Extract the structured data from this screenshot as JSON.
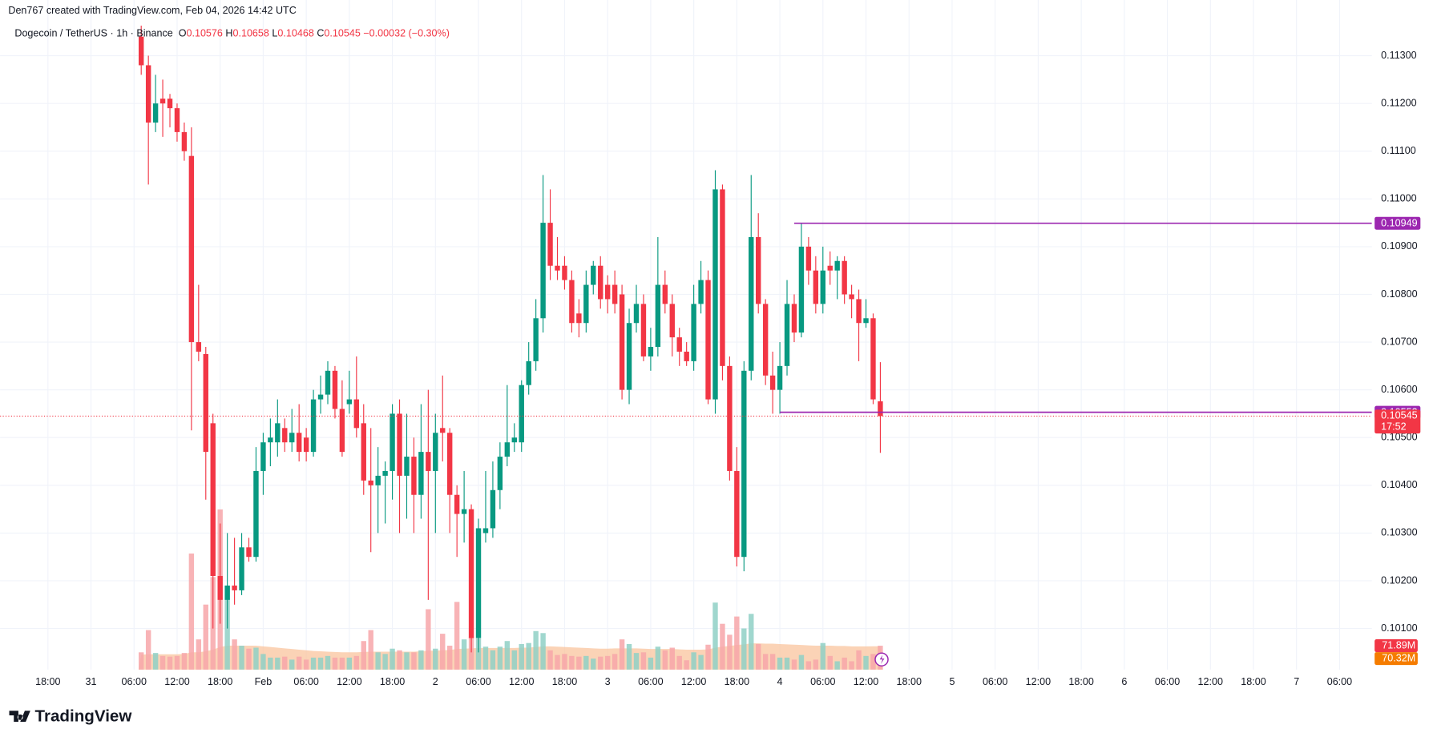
{
  "credit": "Den767 created with TradingView.com, Feb 04, 2026 14:42 UTC",
  "brand": "TradingView",
  "chart_data": {
    "type": "candlestick",
    "title": "Dogecoin / TetherUS · 1h · Binance",
    "ohlc_letters": [
      "O",
      "H",
      "L",
      "C"
    ],
    "change": "−0.00032 (−0.30%)",
    "countdown": "17:52",
    "up_color": "#089981",
    "down_color": "#f23645",
    "volume_up_color": "#8fd0c6",
    "volume_down_color": "#f7a6a9",
    "volume_ma_color": "#f9c49d",
    "level_color": "#9c27b0",
    "grid": true,
    "xlim": [
      -19.67,
      171.5
    ],
    "ylim": [
      0.10014,
      0.11363
    ],
    "yticks": [
      {
        "value": 0.101,
        "label": "0.10100"
      },
      {
        "value": 0.102,
        "label": "0.10200"
      },
      {
        "value": 0.103,
        "label": "0.10300"
      },
      {
        "value": 0.104,
        "label": "0.10400"
      },
      {
        "value": 0.105,
        "label": "0.10500"
      },
      {
        "value": 0.106,
        "label": "0.10600"
      },
      {
        "value": 0.107,
        "label": "0.10700"
      },
      {
        "value": 0.108,
        "label": "0.10800"
      },
      {
        "value": 0.109,
        "label": "0.10900"
      },
      {
        "value": 0.11,
        "label": "0.11000"
      },
      {
        "value": 0.111,
        "label": "0.11100"
      },
      {
        "value": 0.112,
        "label": "0.11200"
      },
      {
        "value": 0.113,
        "label": "0.11300"
      }
    ],
    "xticks": [
      {
        "value": -13,
        "label": "18:00"
      },
      {
        "value": -7,
        "label": "31"
      },
      {
        "value": -1,
        "label": "06:00"
      },
      {
        "value": 5,
        "label": "12:00"
      },
      {
        "value": 11,
        "label": "18:00"
      },
      {
        "value": 17,
        "label": "Feb"
      },
      {
        "value": 23,
        "label": "06:00"
      },
      {
        "value": 29,
        "label": "12:00"
      },
      {
        "value": 35,
        "label": "18:00"
      },
      {
        "value": 41,
        "label": "2"
      },
      {
        "value": 47,
        "label": "06:00"
      },
      {
        "value": 53,
        "label": "12:00"
      },
      {
        "value": 59,
        "label": "18:00"
      },
      {
        "value": 65,
        "label": "3"
      },
      {
        "value": 71,
        "label": "06:00"
      },
      {
        "value": 77,
        "label": "12:00"
      },
      {
        "value": 83,
        "label": "18:00"
      },
      {
        "value": 89,
        "label": "4"
      },
      {
        "value": 95,
        "label": "06:00"
      },
      {
        "value": 101,
        "label": "12:00"
      },
      {
        "value": 107,
        "label": "18:00"
      },
      {
        "value": 113,
        "label": "5"
      },
      {
        "value": 119,
        "label": "06:00"
      },
      {
        "value": 125,
        "label": "12:00"
      },
      {
        "value": 131,
        "label": "18:00"
      },
      {
        "value": 137,
        "label": "6"
      },
      {
        "value": 143,
        "label": "06:00"
      },
      {
        "value": 149,
        "label": "12:00"
      },
      {
        "value": 155,
        "label": "18:00"
      },
      {
        "value": 161,
        "label": "7"
      },
      {
        "value": 167,
        "label": "06:00"
      }
    ],
    "open": [
      0.1134,
      0.1128,
      0.1116,
      0.1121,
      0.1121,
      0.1119,
      0.1114,
      0.1109,
      0.107,
      0.10675,
      0.1053,
      0.1021,
      0.1016,
      0.1019,
      0.1018,
      0.1027,
      0.1025,
      0.1043,
      0.1049,
      0.1049,
      0.1052,
      0.1049,
      0.1051,
      0.105,
      0.1047,
      0.1058,
      0.1059,
      0.1064,
      0.1056,
      0.1057,
      0.1058,
      0.1053,
      0.1041,
      0.104,
      0.1042,
      0.1043,
      0.1055,
      0.1042,
      0.1046,
      0.1038,
      0.1047,
      0.1043,
      0.1052,
      0.1051,
      0.1038,
      0.1034,
      0.1035,
      0.1008,
      0.103,
      0.1031,
      0.1039,
      0.1046,
      0.1049,
      0.1049,
      0.1061,
      0.1066,
      0.1075,
      0.1095,
      0.1086,
      0.1086,
      0.1083,
      0.1076,
      0.1074,
      0.1082,
      0.1086,
      0.1082,
      0.1082,
      0.108,
      0.106,
      0.1074,
      0.1078,
      0.1067,
      0.1069,
      0.1082,
      0.1078,
      0.1071,
      0.1068,
      0.1066,
      0.1078,
      0.1083,
      0.1058,
      0.1102,
      0.1065,
      0.1043,
      0.1025,
      0.1064,
      0.1092,
      0.1078,
      0.1063,
      0.106,
      0.1065,
      0.1078,
      0.1072,
      0.109,
      0.1085,
      0.1078,
      0.1086,
      0.1085,
      0.1087,
      0.108,
      0.1079,
      0.1074,
      0.1075,
      0.10576
    ],
    "high": [
      0.1137,
      0.113,
      0.1126,
      0.1125,
      0.1122,
      0.112,
      0.1116,
      0.1115,
      0.1082,
      0.1069,
      0.1055,
      0.1032,
      0.103,
      0.1029,
      0.103,
      0.1029,
      0.1048,
      0.1051,
      0.1054,
      0.1058,
      0.1054,
      0.1056,
      0.1057,
      0.1052,
      0.106,
      0.1063,
      0.1066,
      0.1065,
      0.1062,
      0.1064,
      0.1067,
      0.1057,
      0.1052,
      0.1048,
      0.1045,
      0.1057,
      0.1058,
      0.1055,
      0.105,
      0.1057,
      0.106,
      0.1055,
      0.1063,
      0.1052,
      0.104,
      0.1043,
      0.1036,
      0.1033,
      0.1043,
      0.1045,
      0.1049,
      0.1061,
      0.1053,
      0.1062,
      0.107,
      0.1079,
      0.1105,
      0.1102,
      0.1092,
      0.1088,
      0.1085,
      0.1079,
      0.1085,
      0.1087,
      0.1088,
      0.1084,
      0.1085,
      0.1082,
      0.1077,
      0.1082,
      0.108,
      0.1073,
      0.1092,
      0.1085,
      0.108,
      0.1073,
      0.107,
      0.1082,
      0.1087,
      0.1085,
      0.1106,
      0.1103,
      0.1067,
      0.1048,
      0.1066,
      0.1105,
      0.1097,
      0.1079,
      0.1068,
      0.107,
      0.1083,
      0.108,
      0.10949,
      0.1092,
      0.1088,
      0.109,
      0.1089,
      0.1088,
      0.1088,
      0.1082,
      0.1081,
      0.1079,
      0.1076,
      0.10658
    ],
    "low": [
      0.1126,
      0.1103,
      0.1114,
      0.1113,
      0.1115,
      0.1112,
      0.1108,
      0.10515,
      0.1066,
      0.1037,
      0.101,
      0.1011,
      0.101,
      0.1015,
      0.1017,
      0.1024,
      0.1024,
      0.1038,
      0.1044,
      0.1046,
      0.1047,
      0.1047,
      0.1045,
      0.1045,
      0.1046,
      0.1055,
      0.1057,
      0.1054,
      0.1046,
      0.1055,
      0.105,
      0.1038,
      0.1026,
      0.103,
      0.1032,
      0.1037,
      0.103,
      0.1033,
      0.103,
      0.1033,
      0.1016,
      0.103,
      0.1045,
      0.103,
      0.1025,
      0.1028,
      0.1005,
      0.1005,
      0.1028,
      0.1029,
      0.1035,
      0.1044,
      0.1047,
      0.1047,
      0.1059,
      0.1064,
      0.1072,
      0.1083,
      0.1083,
      0.1081,
      0.1072,
      0.1071,
      0.1072,
      0.108,
      0.1077,
      0.1076,
      0.1076,
      0.1058,
      0.1057,
      0.1072,
      0.1066,
      0.1064,
      0.1067,
      0.1076,
      0.1067,
      0.1065,
      0.1065,
      0.1064,
      0.1076,
      0.1057,
      0.1055,
      0.1062,
      0.1041,
      0.1023,
      0.1022,
      0.1062,
      0.1076,
      0.1061,
      0.1055,
      0.1055,
      0.1063,
      0.107,
      0.1071,
      0.1082,
      0.1076,
      0.1076,
      0.1082,
      0.1079,
      0.1078,
      0.1075,
      0.1066,
      0.1073,
      0.1057,
      0.10468
    ],
    "close": [
      0.1128,
      0.1116,
      0.112,
      0.112,
      0.1119,
      0.1114,
      0.111,
      0.107,
      0.1068,
      0.1047,
      0.1021,
      0.1016,
      0.1019,
      0.1018,
      0.1027,
      0.1025,
      0.1043,
      0.1049,
      0.105,
      0.1053,
      0.1049,
      0.1051,
      0.1047,
      0.1047,
      0.1058,
      0.1059,
      0.1064,
      0.1056,
      0.1047,
      0.1058,
      0.1052,
      0.1041,
      0.104,
      0.1042,
      0.1043,
      0.1055,
      0.1042,
      0.1046,
      0.1038,
      0.1047,
      0.1043,
      0.1051,
      0.1051,
      0.1038,
      0.1034,
      0.1035,
      0.1008,
      0.1031,
      0.1031,
      0.1039,
      0.1046,
      0.1049,
      0.105,
      0.1061,
      0.1066,
      0.1075,
      0.1095,
      0.1086,
      0.1085,
      0.1083,
      0.1074,
      0.1074,
      0.1082,
      0.1086,
      0.1079,
      0.1079,
      0.1078,
      0.106,
      0.1074,
      0.1078,
      0.1067,
      0.1069,
      0.1082,
      0.1078,
      0.1071,
      0.1068,
      0.1066,
      0.1078,
      0.1083,
      0.1058,
      0.1102,
      0.1065,
      0.1043,
      0.1025,
      0.1064,
      0.1092,
      0.1078,
      0.1063,
      0.106,
      0.1065,
      0.1078,
      0.1072,
      0.109,
      0.1085,
      0.1078,
      0.1085,
      0.1085,
      0.1087,
      0.108,
      0.1079,
      0.1074,
      0.1075,
      0.1058,
      0.10545
    ],
    "volume": [
      52,
      119,
      50,
      41,
      39,
      41,
      50,
      350,
      91,
      196,
      279,
      483,
      251,
      91,
      72,
      63,
      66,
      47,
      36,
      36,
      39,
      30,
      39,
      30,
      36,
      36,
      41,
      36,
      36,
      36,
      41,
      86,
      119,
      52,
      47,
      63,
      58,
      52,
      52,
      58,
      182,
      63,
      108,
      72,
      204,
      91,
      99,
      94,
      69,
      58,
      69,
      86,
      58,
      77,
      80,
      116,
      110,
      58,
      44,
      47,
      41,
      39,
      41,
      33,
      39,
      41,
      47,
      91,
      77,
      50,
      52,
      36,
      69,
      58,
      66,
      41,
      28,
      52,
      44,
      75,
      202,
      138,
      105,
      160,
      124,
      168,
      77,
      47,
      47,
      36,
      36,
      30,
      44,
      25,
      30,
      80,
      41,
      25,
      36,
      25,
      58,
      41,
      47,
      71.89
    ],
    "volume_ma": [
      45,
      46,
      46,
      46,
      46,
      46,
      47,
      52,
      52,
      55,
      60,
      68,
      72,
      72,
      72,
      72,
      72,
      70,
      68,
      66,
      64,
      62,
      60,
      58,
      56,
      55,
      54,
      53,
      52,
      52,
      52,
      53,
      54,
      54,
      54,
      54,
      54,
      54,
      54,
      55,
      57,
      57,
      58,
      59,
      62,
      63,
      64,
      65,
      65,
      65,
      65,
      65,
      65,
      66,
      66,
      68,
      70,
      70,
      69,
      68,
      67,
      66,
      65,
      64,
      63,
      63,
      64,
      64,
      64,
      64,
      63,
      62,
      62,
      62,
      62,
      61,
      60,
      60,
      60,
      61,
      66,
      69,
      71,
      74,
      76,
      79,
      79,
      78,
      78,
      77,
      76,
      75,
      74,
      73,
      72,
      72,
      72,
      71,
      71,
      70,
      70,
      70,
      70.2,
      70.32
    ],
    "volume_label": "71.89M",
    "volume_ma_label": "70.32M",
    "levels": [
      {
        "value": 0.10949,
        "start": 91
      },
      {
        "value": 0.10553,
        "start": 89
      }
    ]
  }
}
